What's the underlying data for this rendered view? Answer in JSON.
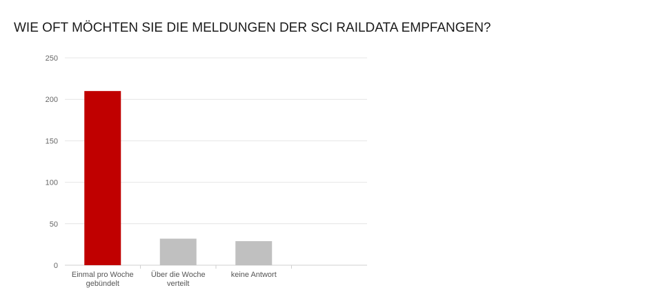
{
  "title": "WIE OFT MÖCHTEN SIE DIE MELDUNGEN DER SCI RAILDATA EMPFANGEN?",
  "chart_data": {
    "type": "bar",
    "title": "WIE OFT MÖCHTEN SIE DIE MELDUNGEN DER SCI RAILDATA EMPFANGEN?",
    "categories": [
      [
        "Einmal pro Woche",
        "gebündelt"
      ],
      [
        "Über die Woche",
        "verteilt"
      ],
      [
        "keine Antwort"
      ],
      [
        ""
      ]
    ],
    "values": [
      210,
      32,
      29,
      null
    ],
    "colors": [
      "#c00000",
      "#c0c0c0",
      "#c0c0c0",
      "#c0c0c0"
    ],
    "ylim": [
      0,
      250
    ],
    "yticks": [
      0,
      50,
      100,
      150,
      200,
      250
    ],
    "grid": true,
    "xlabel": "",
    "ylabel": ""
  }
}
